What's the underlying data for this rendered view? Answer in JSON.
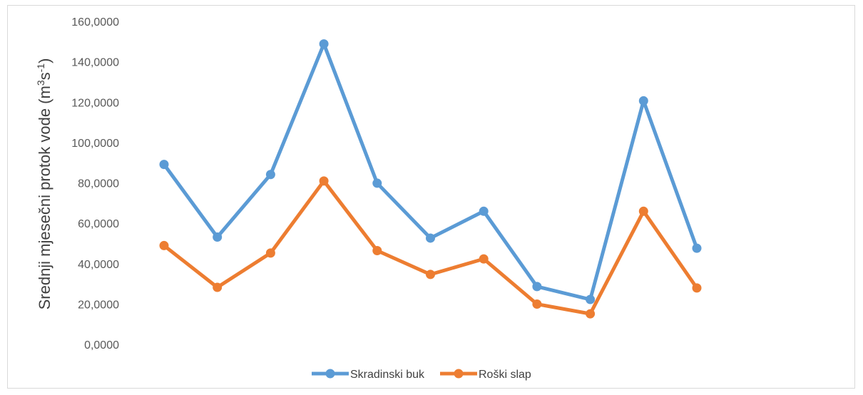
{
  "chart_data": {
    "type": "line",
    "title": "",
    "xlabel": "",
    "ylabel": "Srednji mjesečni protok vode (m³s⁻¹)",
    "ylabel_parts": {
      "base": "Srednji mjesečni protok vode (m",
      "sup1": "3",
      "mid": "s",
      "sup2": "-1",
      "end": ")"
    },
    "ylim": [
      0,
      160
    ],
    "yticks": [
      {
        "value": 0,
        "label": "0,0000"
      },
      {
        "value": 20,
        "label": "20,0000"
      },
      {
        "value": 40,
        "label": "40,0000"
      },
      {
        "value": 60,
        "label": "60,0000"
      },
      {
        "value": 80,
        "label": "80,0000"
      },
      {
        "value": 100,
        "label": "100,0000"
      },
      {
        "value": 120,
        "label": "120,0000"
      },
      {
        "value": 140,
        "label": "140,0000"
      },
      {
        "value": 160,
        "label": "160,0000"
      }
    ],
    "grid": false,
    "legend_position": "bottom",
    "series": [
      {
        "name": "Skradinski buk",
        "color": "#5b9bd5",
        "values": [
          89.5,
          53.5,
          84.5,
          149.2,
          80.2,
          53.0,
          66.3,
          29.0,
          22.6,
          121.0,
          48.0
        ]
      },
      {
        "name": "Roški slap",
        "color": "#ed7d31",
        "values": [
          49.3,
          28.6,
          45.6,
          81.3,
          46.8,
          35.0,
          42.7,
          20.3,
          15.5,
          66.3,
          28.3
        ]
      }
    ]
  }
}
